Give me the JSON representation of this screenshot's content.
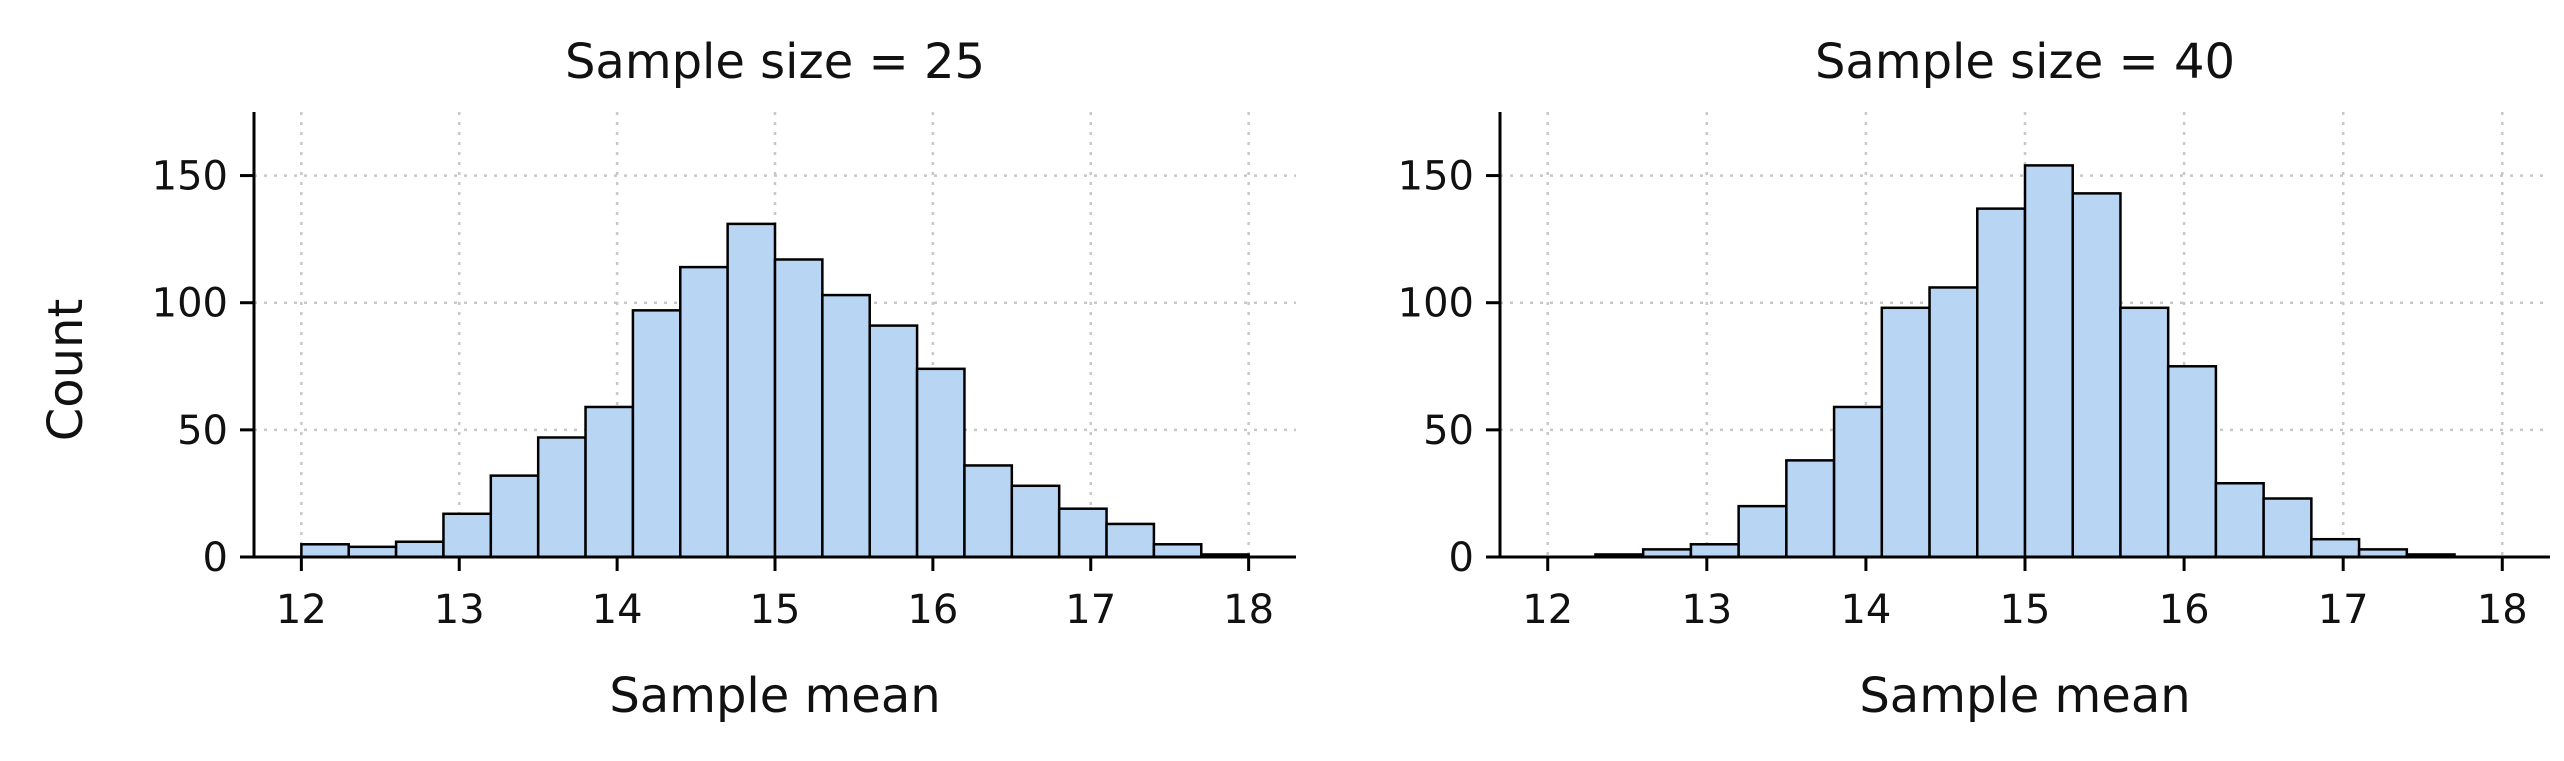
{
  "chart_data": [
    {
      "type": "bar",
      "title": "Sample size = 25",
      "xlabel": "Sample mean",
      "ylabel": "Count",
      "xlim": [
        11.7,
        18.3
      ],
      "ylim": [
        0,
        175
      ],
      "xticks": [
        12,
        13,
        14,
        15,
        16,
        17,
        18
      ],
      "yticks": [
        0,
        50,
        100,
        150
      ],
      "grid": true,
      "bar_color": "#b8d6f4",
      "edge_color": "#000000",
      "bin_edges": [
        12.0,
        12.3,
        12.6,
        12.9,
        13.2,
        13.5,
        13.8,
        14.1,
        14.4,
        14.7,
        15.0,
        15.3,
        15.6,
        15.9,
        16.2,
        16.5,
        16.8,
        17.1,
        17.4,
        17.7,
        18.0
      ],
      "values": [
        5,
        4,
        6,
        17,
        32,
        47,
        59,
        97,
        114,
        131,
        117,
        103,
        91,
        74,
        36,
        28,
        19,
        13,
        5,
        1
      ]
    },
    {
      "type": "bar",
      "title": "Sample size = 40",
      "xlabel": "Sample mean",
      "ylabel": "",
      "xlim": [
        11.7,
        18.3
      ],
      "ylim": [
        0,
        175
      ],
      "xticks": [
        12,
        13,
        14,
        15,
        16,
        17,
        18
      ],
      "yticks": [
        0,
        50,
        100,
        150
      ],
      "grid": true,
      "bar_color": "#b8d6f4",
      "edge_color": "#000000",
      "bin_edges": [
        12.0,
        12.3,
        12.6,
        12.9,
        13.2,
        13.5,
        13.8,
        14.1,
        14.4,
        14.7,
        15.0,
        15.3,
        15.6,
        15.9,
        16.2,
        16.5,
        16.8,
        17.1,
        17.4,
        17.7,
        18.0
      ],
      "values": [
        0,
        1,
        3,
        5,
        20,
        38,
        59,
        98,
        106,
        137,
        154,
        143,
        98,
        75,
        29,
        23,
        7,
        3,
        1,
        0
      ]
    }
  ]
}
